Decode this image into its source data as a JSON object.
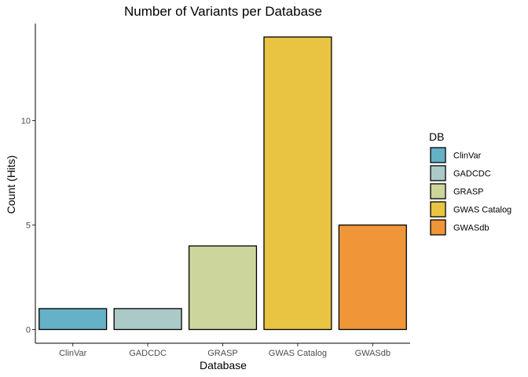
{
  "chart_data": {
    "type": "bar",
    "title": "Number of Variants per Database",
    "xlabel": "Database",
    "ylabel": "Count (Hits)",
    "categories": [
      "ClinVar",
      "GADCDC",
      "GRASP",
      "GWAS Catalog",
      "GWASdb"
    ],
    "values": [
      1,
      1,
      4,
      14,
      5
    ],
    "colors": [
      "#65b1c6",
      "#abc9c6",
      "#ccd59b",
      "#e8c442",
      "#f09538"
    ],
    "ylim": [
      0,
      14.65
    ],
    "yticks": [
      0,
      5,
      10
    ],
    "grid": false,
    "legend": {
      "title": "DB",
      "position": "right",
      "entries": [
        "ClinVar",
        "GADCDC",
        "GRASP",
        "GWAS Catalog",
        "GWASdb"
      ]
    }
  }
}
